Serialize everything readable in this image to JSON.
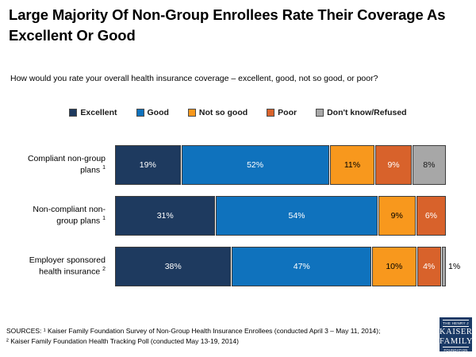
{
  "slide": {
    "title": "Large Majority Of Non-Group Enrollees Rate Their Coverage As Excellent Or Good",
    "question": "How would you rate your overall health insurance coverage – excellent, good, not so good, or poor?"
  },
  "chart_data": {
    "type": "bar",
    "orientation": "horizontal",
    "stacked": true,
    "title": "Large Majority Of Non-Group Enrollees Rate Their Coverage As Excellent Or Good",
    "xlabel": "",
    "ylabel": "",
    "xlim": [
      0,
      100
    ],
    "value_suffix": "%",
    "legend_position": "top",
    "grid": false,
    "categories": [
      "Compliant non-group plans",
      "Non-compliant non-group plans",
      "Employer sponsored health insurance"
    ],
    "category_footnote_marks": [
      "1",
      "1",
      "2"
    ],
    "series": [
      {
        "name": "Excellent",
        "color": "#1e3a5f",
        "label_color": "#ffffff",
        "values": [
          19,
          31,
          38
        ]
      },
      {
        "name": "Good",
        "color": "#0f72bd",
        "label_color": "#ffffff",
        "values": [
          52,
          54,
          47
        ]
      },
      {
        "name": "Not so good",
        "color": "#f8981d",
        "label_color": "#000000",
        "values": [
          11,
          9,
          10
        ]
      },
      {
        "name": "Poor",
        "color": "#d8622b",
        "label_color": "#ffffff",
        "values": [
          9,
          6,
          4
        ]
      },
      {
        "name": "Don't know/Refused",
        "color": "#a7a7a7",
        "label_color": "#1a1a1a",
        "values": [
          8,
          0,
          1
        ]
      }
    ]
  },
  "sources": {
    "line1": "SOURCES: ¹ Kaiser Family Foundation Survey of Non-Group Health Insurance Enrollees (conducted April 3 – May 11, 2014);",
    "line2": "² Kaiser Family Foundation Health Tracking Poll (conducted May 13-19, 2014)"
  },
  "logo": {
    "top_text": "THE HENRY J",
    "name_line1": "KAISER",
    "name_line2": "FAMILY",
    "bottom_text": "FOUNDATION",
    "bg_color": "#1b3a66"
  }
}
